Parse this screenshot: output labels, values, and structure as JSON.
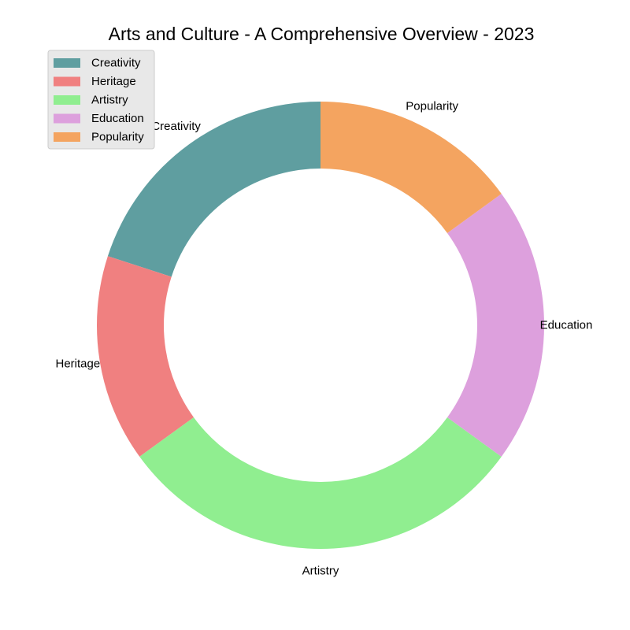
{
  "chart_data": {
    "type": "pie",
    "variant": "donut",
    "title": "Arts and Culture - A Comprehensive Overview - 2023",
    "categories": [
      "Creativity",
      "Heritage",
      "Artistry",
      "Education",
      "Popularity"
    ],
    "values": [
      20,
      15,
      30,
      20,
      15
    ],
    "colors": [
      "#5F9EA0",
      "#F08080",
      "#90EE90",
      "#DDA0DD",
      "#F4A460"
    ],
    "start_angle_deg": 90,
    "direction": "counterclockwise",
    "legend": {
      "placement": "top-left",
      "entries": [
        "Creativity",
        "Heritage",
        "Artistry",
        "Education",
        "Popularity"
      ]
    }
  }
}
